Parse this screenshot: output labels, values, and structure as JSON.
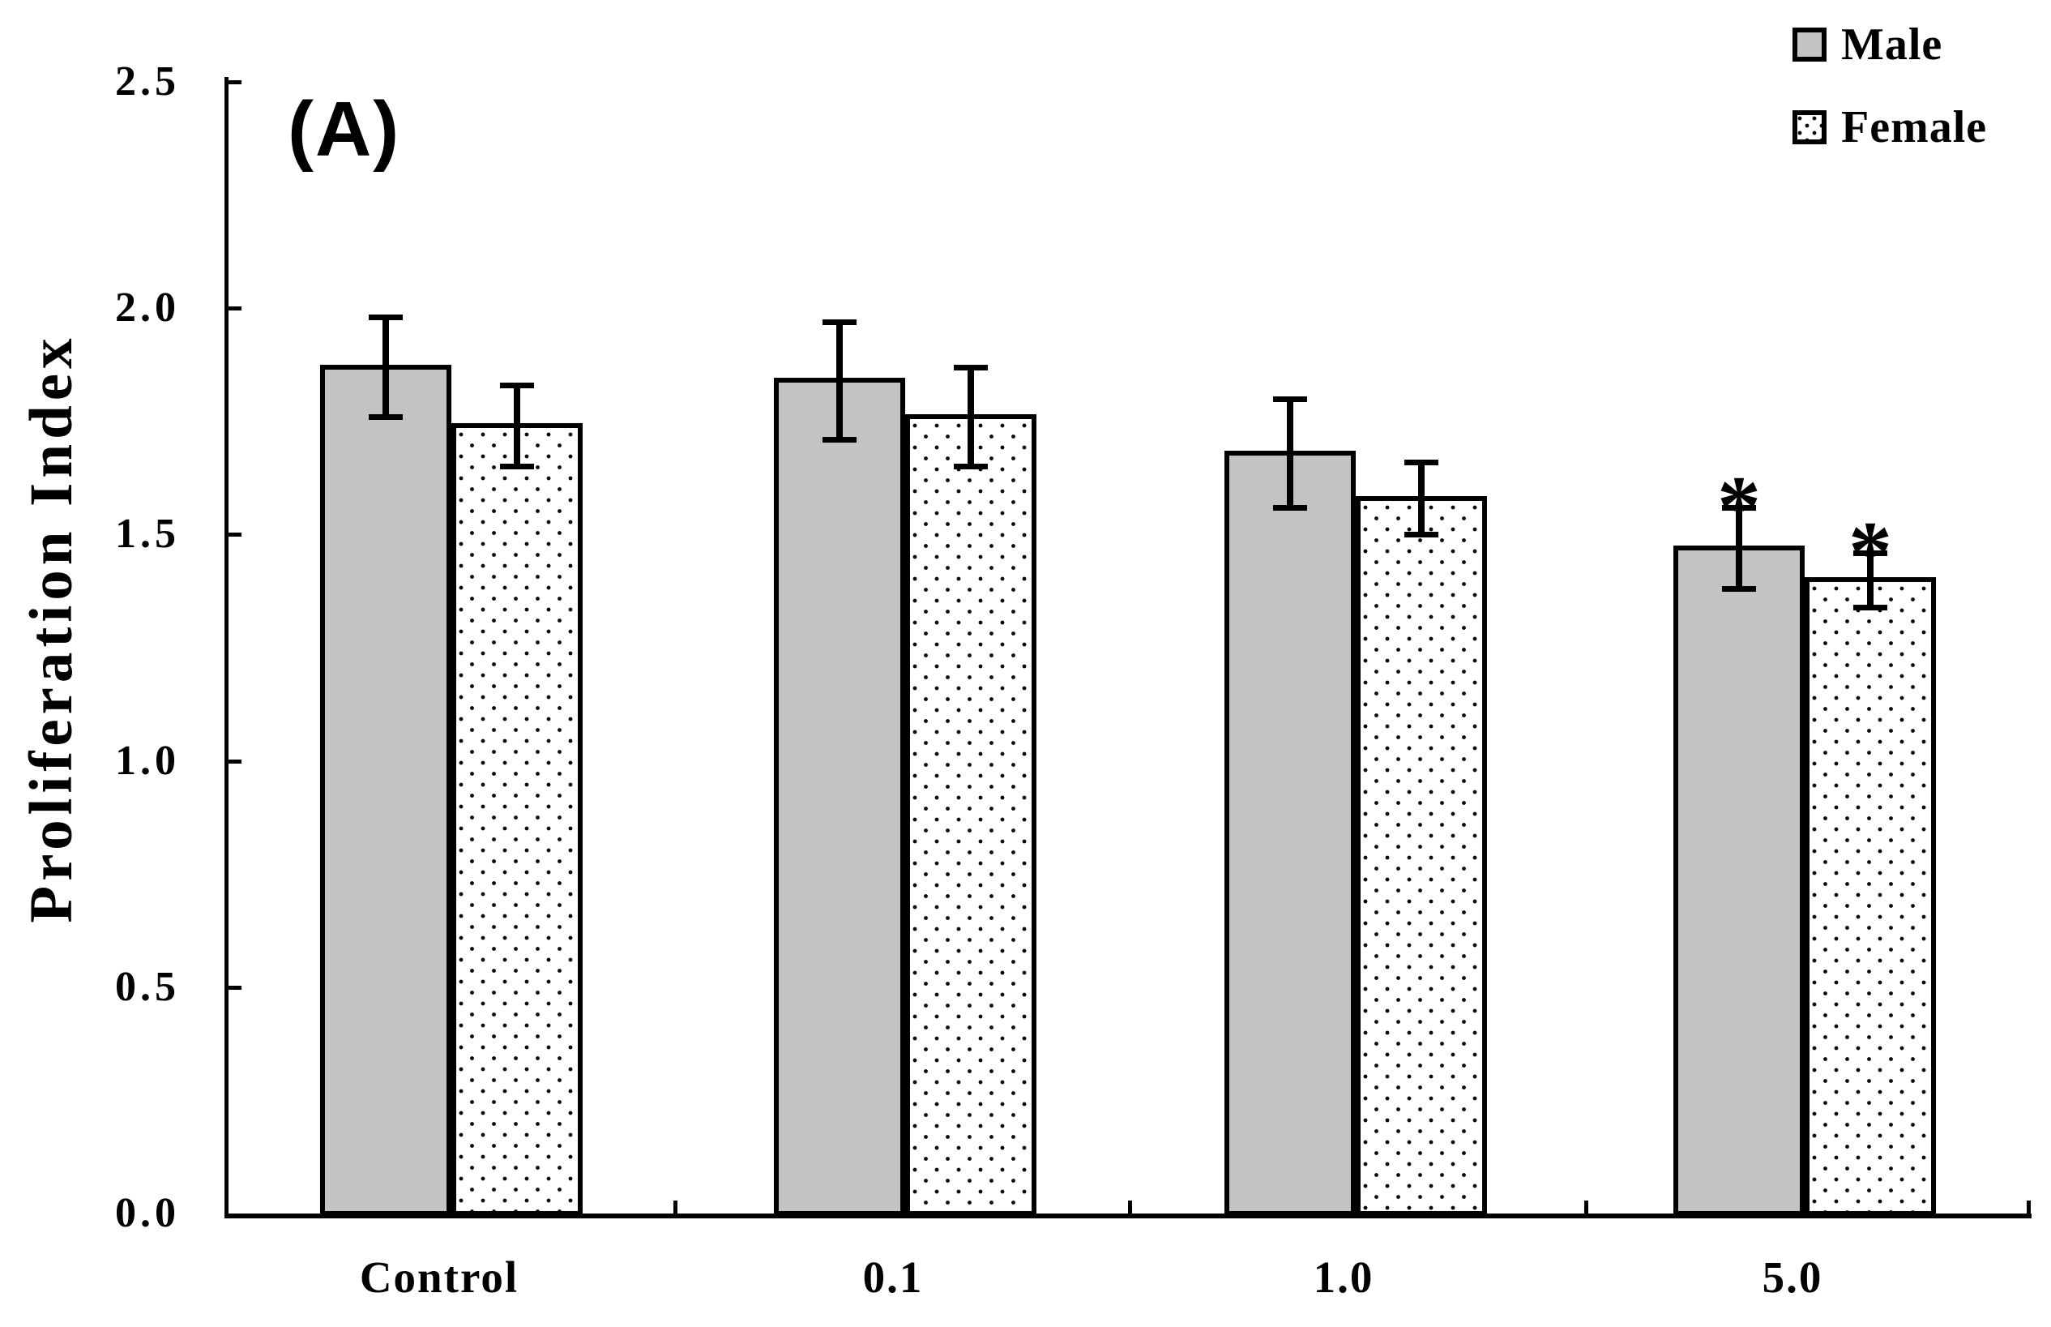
{
  "figure": {
    "panel_label": "(A)"
  },
  "chart_data": {
    "type": "bar",
    "title": "",
    "xlabel": "",
    "ylabel": "Proliferation Index",
    "ylim": [
      0,
      2.5
    ],
    "ytick_values": [
      0,
      0.5,
      1.0,
      1.5,
      2.0,
      2.5
    ],
    "ytick_labels": [
      "0.0",
      "0.5",
      "1.0",
      "1.5",
      "2.0",
      "2.5"
    ],
    "categories": [
      "Control",
      "0.1",
      "1.0",
      "5.0"
    ],
    "series": [
      {
        "name": "Male",
        "fill": "gray",
        "values": [
          1.87,
          1.84,
          1.68,
          1.47
        ],
        "errors": [
          0.11,
          0.13,
          0.12,
          0.09
        ],
        "significance": [
          "",
          "",
          "",
          "*"
        ]
      },
      {
        "name": "Female",
        "fill": "dotted",
        "values": [
          1.74,
          1.76,
          1.58,
          1.4
        ],
        "errors": [
          0.09,
          0.11,
          0.08,
          0.06
        ],
        "significance": [
          "",
          "",
          "",
          "*"
        ]
      }
    ],
    "legend_position": "top-right",
    "grid": false,
    "error_bars": "both",
    "colors": {
      "male_fill": "#c3c3c3",
      "female_fill": "#ffffff",
      "stroke": "#000000"
    }
  }
}
